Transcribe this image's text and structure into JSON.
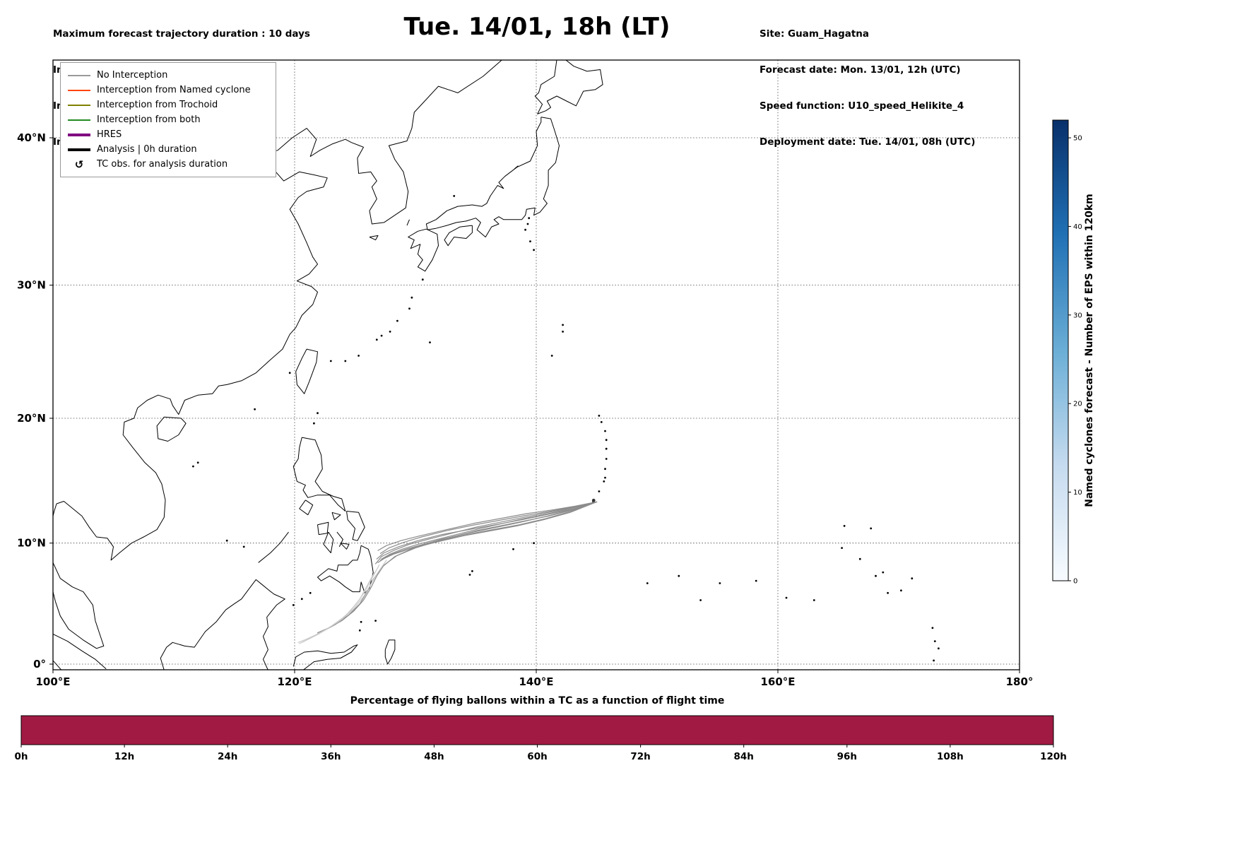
{
  "header_left": {
    "l1": "Maximum forecast trajectory duration : 10 days",
    "l2": "Intercept distance: 300km",
    "l3": "Intercept RW2 (EPS):  30km/h2",
    "l4": "Intercept RW2 (HRES): 30km/h2"
  },
  "title": "Tue. 14/01, 18h (LT)",
  "header_right": {
    "l1": "Site: Guam_Hagatna",
    "l2": "Forecast date: Mon. 13/01, 12h (UTC)",
    "l3": "Speed function: U10_speed_Helikite_4",
    "l4": "Deployment date: Tue. 14/01, 08h (UTC)"
  },
  "map": {
    "x_tick_labels": [
      "100°E",
      "120°E",
      "140°E",
      "160°E",
      "180°"
    ],
    "x_tick_lons": [
      100,
      120,
      140,
      160,
      180
    ],
    "y_tick_labels": [
      "40°N",
      "30°N",
      "20°N",
      "10°N",
      "0°"
    ],
    "y_tick_lats": [
      40,
      30,
      20,
      10,
      0
    ],
    "legend": [
      {
        "label": "No Interception",
        "type": "line",
        "color": "#999999",
        "lw": 2
      },
      {
        "label": "Interception from Named cyclone",
        "type": "line",
        "color": "#ff4500",
        "lw": 2
      },
      {
        "label": "Interception from Trochoid",
        "type": "line",
        "color": "#808000",
        "lw": 2
      },
      {
        "label": "Interception from both",
        "type": "line",
        "color": "#228b22",
        "lw": 2
      },
      {
        "label": "HRES",
        "type": "line",
        "color": "#800080",
        "lw": 4
      },
      {
        "label": "Analysis | 0h duration",
        "type": "line",
        "color": "#000000",
        "lw": 4
      },
      {
        "label": "TC obs. for analysis duration",
        "type": "symbol",
        "symbol": "↺",
        "color": "#000000"
      }
    ]
  },
  "colorbar": {
    "label": "Named cyclones forecast - Number of EPS within 120km",
    "tick_values": [
      0,
      10,
      20,
      30,
      40,
      50
    ],
    "vmin": 0,
    "vmax": 52,
    "gradient": [
      "#f7fbff",
      "#c6dbef",
      "#6baed6",
      "#2171b5",
      "#08306b"
    ]
  },
  "bottom": {
    "title": "Percentage of flying ballons within a TC as a function of flight time",
    "tick_labels": [
      "0h",
      "12h",
      "24h",
      "36h",
      "48h",
      "60h",
      "72h",
      "84h",
      "96h",
      "108h",
      "120h"
    ],
    "bar_color": "#a11a44"
  },
  "chart_data": [
    {
      "type": "line",
      "name": "EPS balloon forecast trajectories from Guam (all: No Interception)",
      "projection": "mercator",
      "lon_range": [
        100,
        180
      ],
      "lat_range": [
        -0.5,
        44.8
      ],
      "launch_site": {
        "name": "Guam_Hagatna",
        "lon": 144.75,
        "lat": 13.47
      },
      "series": [
        {
          "name": "traj-01",
          "color": "#8c8c8c",
          "points": [
            [
              145.0,
              13.35
            ],
            [
              143.0,
              12.9
            ],
            [
              141.0,
              12.5
            ],
            [
              139.0,
              12.1
            ],
            [
              137.0,
              11.7
            ],
            [
              135.0,
              11.3
            ],
            [
              133.0,
              10.8
            ],
            [
              131.0,
              10.3
            ],
            [
              129.5,
              9.9
            ],
            [
              128.2,
              9.4
            ],
            [
              127.2,
              8.9
            ],
            [
              126.7,
              8.3
            ]
          ]
        },
        {
          "name": "traj-02",
          "color": "#8c8c8c",
          "points": [
            [
              145.0,
              13.35
            ],
            [
              143.0,
              12.7
            ],
            [
              141.0,
              12.2
            ],
            [
              139.0,
              11.8
            ],
            [
              137.0,
              11.4
            ],
            [
              135.0,
              11.0
            ],
            [
              133.0,
              10.5
            ],
            [
              131.0,
              10.0
            ],
            [
              129.2,
              9.5
            ],
            [
              127.8,
              9.0
            ],
            [
              126.9,
              8.4
            ]
          ]
        },
        {
          "name": "traj-03",
          "color": "#8c8c8c",
          "points": [
            [
              145.0,
              13.35
            ],
            [
              143.2,
              13.0
            ],
            [
              141.3,
              12.7
            ],
            [
              139.2,
              12.4
            ],
            [
              137.0,
              12.0
            ],
            [
              134.8,
              11.6
            ],
            [
              132.6,
              11.1
            ],
            [
              130.4,
              10.6
            ],
            [
              128.8,
              10.2
            ],
            [
              127.6,
              9.8
            ],
            [
              126.9,
              9.4
            ]
          ]
        },
        {
          "name": "traj-04",
          "color": "#8c8c8c",
          "points": [
            [
              145.0,
              13.35
            ],
            [
              142.8,
              12.5
            ],
            [
              140.6,
              11.9
            ],
            [
              138.4,
              11.4
            ],
            [
              136.2,
              11.0
            ],
            [
              134.0,
              10.6
            ],
            [
              131.8,
              10.1
            ],
            [
              129.8,
              9.6
            ],
            [
              128.2,
              9.1
            ],
            [
              127.1,
              8.6
            ]
          ]
        },
        {
          "name": "traj-05",
          "color": "#8c8c8c",
          "points": [
            [
              145.0,
              13.35
            ],
            [
              143.1,
              12.8
            ],
            [
              141.0,
              12.35
            ],
            [
              138.8,
              11.9
            ],
            [
              136.6,
              11.5
            ],
            [
              134.4,
              11.1
            ],
            [
              132.2,
              10.7
            ],
            [
              130.2,
              10.2
            ],
            [
              128.6,
              9.7
            ],
            [
              127.4,
              9.2
            ],
            [
              126.8,
              8.7
            ]
          ]
        },
        {
          "name": "traj-06",
          "color": "#8c8c8c",
          "points": [
            [
              145.0,
              13.35
            ],
            [
              142.9,
              12.6
            ],
            [
              140.8,
              12.0
            ],
            [
              138.6,
              11.5
            ],
            [
              136.4,
              11.1
            ],
            [
              134.2,
              10.7
            ],
            [
              132.0,
              10.2
            ],
            [
              130.0,
              9.6
            ],
            [
              128.3,
              8.9
            ],
            [
              127.2,
              8.0
            ],
            [
              126.5,
              7.0
            ],
            [
              126.0,
              6.0
            ],
            [
              125.4,
              5.0
            ],
            [
              124.5,
              4.1
            ],
            [
              123.4,
              3.3
            ],
            [
              122.3,
              2.7
            ],
            [
              121.5,
              2.3
            ]
          ]
        },
        {
          "name": "traj-07",
          "color": "#8c8c8c",
          "points": [
            [
              145.0,
              13.35
            ],
            [
              143.0,
              12.75
            ],
            [
              140.9,
              12.2
            ],
            [
              138.7,
              11.7
            ],
            [
              136.5,
              11.25
            ],
            [
              134.3,
              10.8
            ],
            [
              132.1,
              10.3
            ],
            [
              130.1,
              9.7
            ],
            [
              128.5,
              9.0
            ],
            [
              127.4,
              8.2
            ],
            [
              126.8,
              7.3
            ],
            [
              126.3,
              6.3
            ],
            [
              125.7,
              5.3
            ],
            [
              124.9,
              4.4
            ],
            [
              123.9,
              3.6
            ],
            [
              122.8,
              3.0
            ],
            [
              121.9,
              2.6
            ]
          ]
        },
        {
          "name": "traj-08",
          "color": "#8c8c8c",
          "points": [
            [
              145.0,
              13.35
            ],
            [
              143.1,
              12.95
            ],
            [
              141.2,
              12.6
            ],
            [
              139.1,
              12.25
            ],
            [
              136.9,
              11.85
            ],
            [
              134.7,
              11.45
            ],
            [
              132.5,
              11.0
            ],
            [
              130.5,
              10.5
            ],
            [
              129.0,
              10.05
            ],
            [
              127.8,
              9.6
            ],
            [
              127.1,
              9.15
            ]
          ]
        },
        {
          "name": "traj-09",
          "color": "#8c8c8c",
          "points": [
            [
              145.0,
              13.35
            ],
            [
              143.0,
              12.85
            ],
            [
              141.0,
              12.4
            ],
            [
              139.0,
              12.0
            ],
            [
              137.2,
              11.6
            ],
            [
              135.4,
              11.2
            ],
            [
              133.6,
              10.75
            ],
            [
              131.8,
              10.3
            ],
            [
              130.2,
              9.9
            ],
            [
              128.9,
              9.5
            ],
            [
              127.9,
              9.1
            ],
            [
              127.2,
              8.7
            ]
          ]
        },
        {
          "name": "traj-10-late",
          "color": "#c9c9c9",
          "points": [
            [
              127.6,
              8.6
            ],
            [
              126.9,
              7.6
            ],
            [
              126.3,
              6.6
            ],
            [
              125.7,
              5.6
            ],
            [
              124.9,
              4.6
            ],
            [
              123.9,
              3.7
            ],
            [
              122.8,
              3.0
            ],
            [
              121.7,
              2.4
            ],
            [
              120.8,
              2.0
            ],
            [
              120.3,
              1.8
            ]
          ]
        },
        {
          "name": "traj-11-late",
          "color": "#c9c9c9",
          "points": [
            [
              127.0,
              8.2
            ],
            [
              126.4,
              7.1
            ],
            [
              125.8,
              6.0
            ],
            [
              125.1,
              5.0
            ],
            [
              124.2,
              4.0
            ],
            [
              123.1,
              3.2
            ],
            [
              122.0,
              2.5
            ],
            [
              121.0,
              2.0
            ],
            [
              120.4,
              1.7
            ]
          ]
        },
        {
          "name": "traj-12-late",
          "color": "#c9c9c9",
          "points": [
            [
              126.6,
              7.6
            ],
            [
              126.0,
              6.5
            ],
            [
              125.4,
              5.4
            ],
            [
              124.6,
              4.4
            ],
            [
              123.6,
              3.5
            ],
            [
              122.5,
              2.8
            ],
            [
              121.4,
              2.2
            ],
            [
              120.6,
              1.8
            ]
          ]
        }
      ]
    },
    {
      "type": "bar",
      "name": "Percentage of flying ballons within a TC as a function of flight time",
      "x_tick_hours": [
        0,
        12,
        24,
        36,
        48,
        60,
        72,
        84,
        96,
        108,
        120
      ],
      "x_range_hours": [
        0,
        120
      ],
      "band_uniform_full_height": true,
      "value_percent_uniform": 100,
      "fill_color": "#a11a44"
    }
  ]
}
